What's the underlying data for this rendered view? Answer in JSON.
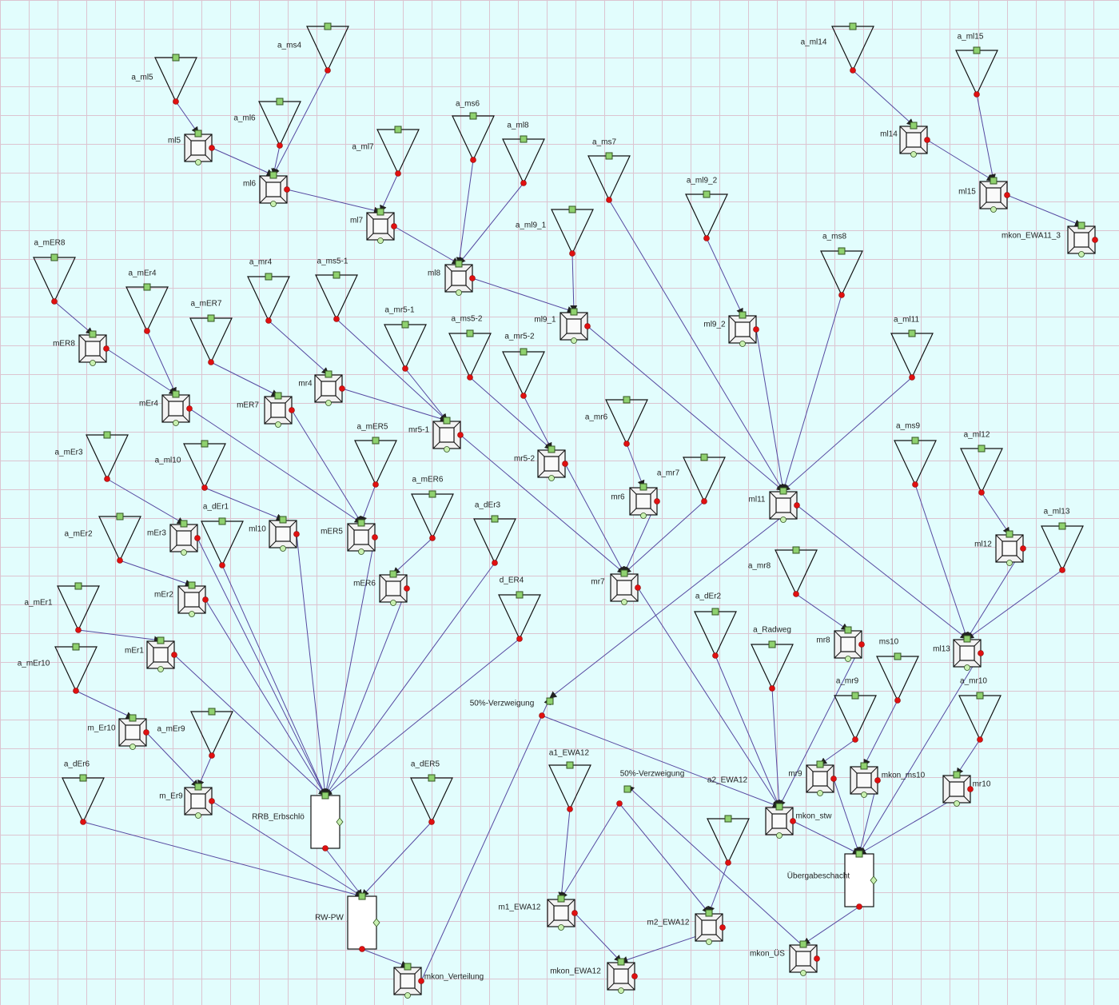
{
  "nodes": [
    {
      "label": "a_ml5"
    },
    {
      "label": "a_ms4"
    },
    {
      "label": "a_ml6"
    },
    {
      "label": "a_ml7"
    },
    {
      "label": "a_ms6"
    },
    {
      "label": "a_ml8"
    },
    {
      "label": "a_ms7"
    },
    {
      "label": "a_ml9_1"
    },
    {
      "label": "a_ml9_2"
    },
    {
      "label": "a_ms8"
    },
    {
      "label": "a_ml11"
    },
    {
      "label": "a_ml14"
    },
    {
      "label": "a_ml15"
    },
    {
      "label": "a_mER8"
    },
    {
      "label": "a_mEr4"
    },
    {
      "label": "a_mER7"
    },
    {
      "label": "a_mr4"
    },
    {
      "label": "a_ms5-1"
    },
    {
      "label": "a_mr5-1"
    },
    {
      "label": "a_ms5-2"
    },
    {
      "label": "a_mr5-2"
    },
    {
      "label": "a_mr6"
    },
    {
      "label": "a_mr7"
    },
    {
      "label": "a_mEr3"
    },
    {
      "label": "a_ml10"
    },
    {
      "label": "a_mER5"
    },
    {
      "label": "a_mER6"
    },
    {
      "label": "a_dEr1"
    },
    {
      "label": "a_dEr3"
    },
    {
      "label": "d_ER4"
    },
    {
      "label": "a_mEr2"
    },
    {
      "label": "a_mEr1"
    },
    {
      "label": "a_mEr10"
    },
    {
      "label": "a_mEr9"
    },
    {
      "label": "a_dEr6"
    },
    {
      "label": "a_dER5"
    },
    {
      "label": "a_mr8"
    },
    {
      "label": "a_dEr2"
    },
    {
      "label": "a_Radweg"
    },
    {
      "label": "a_ms9"
    },
    {
      "label": "a_ml12"
    },
    {
      "label": "a_ml13"
    },
    {
      "label": "a_mr9"
    },
    {
      "label": "ms10"
    },
    {
      "label": "a_mr10"
    },
    {
      "label": "a1_EWA12"
    },
    {
      "label": "a2_EWA12"
    },
    {
      "label": "ml5"
    },
    {
      "label": "ml6"
    },
    {
      "label": "ml7"
    },
    {
      "label": "ml8"
    },
    {
      "label": "ml9_1"
    },
    {
      "label": "ml9_2"
    },
    {
      "label": "ml14"
    },
    {
      "label": "ml15"
    },
    {
      "label": "mkon_EWA11_3"
    },
    {
      "label": "mER8"
    },
    {
      "label": "mEr4"
    },
    {
      "label": "mER7"
    },
    {
      "label": "mr4"
    },
    {
      "label": "mr5-1"
    },
    {
      "label": "mr5-2"
    },
    {
      "label": "mr6"
    },
    {
      "label": "mr7"
    },
    {
      "label": "ml11"
    },
    {
      "label": "mEr3"
    },
    {
      "label": "ml10"
    },
    {
      "label": "mER5"
    },
    {
      "label": "mER6"
    },
    {
      "label": "mEr2"
    },
    {
      "label": "mEr1"
    },
    {
      "label": "m_Er10"
    },
    {
      "label": "m_Er9"
    },
    {
      "label": "ml12"
    },
    {
      "label": "ml13"
    },
    {
      "label": "mr8"
    },
    {
      "label": "mr9"
    },
    {
      "label": "mkon_ms10"
    },
    {
      "label": "mr10"
    },
    {
      "label": "mkon_stw"
    },
    {
      "label": "m1_EWA12"
    },
    {
      "label": "m2_EWA12"
    },
    {
      "label": "mkon_EWA12"
    },
    {
      "label": "mkon_ÜS"
    },
    {
      "label": "mkon_Verteilung"
    },
    {
      "label": "RRB_Erbschlö"
    },
    {
      "label": "RW-PW"
    },
    {
      "label": "Übergabeschacht"
    },
    {
      "label": "50%-Verzweigung"
    },
    {
      "label": "50%-Verzweigung"
    }
  ]
}
